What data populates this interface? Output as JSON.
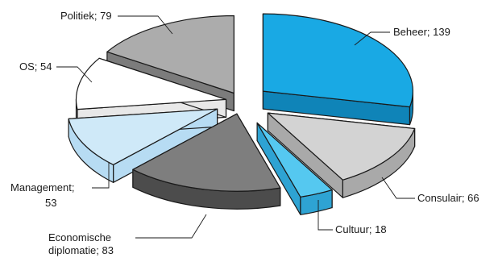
{
  "chart_data": {
    "type": "pie",
    "title": "",
    "three_d": true,
    "exploded": true,
    "slices": [
      {
        "name": "Beheer",
        "value": 139,
        "label": "Beheer; 139",
        "color": "#19a9e4",
        "side": "#0f84b8"
      },
      {
        "name": "Consulair",
        "value": 66,
        "label": "Consulair; 66",
        "color": "#d3d3d3",
        "side": "#a9a9a9"
      },
      {
        "name": "Cultuur",
        "value": 18,
        "label": "Cultuur; 18",
        "color": "#55c8f0",
        "side": "#2ea3d3"
      },
      {
        "name": "Economische diplomatie",
        "value": 83,
        "label_lines": [
          "Economische",
          "diplomatie; 83"
        ],
        "color": "#7e7e7e",
        "side": "#4c4c4c"
      },
      {
        "name": "Management",
        "value": 53,
        "label_lines": [
          "Management;",
          "53"
        ],
        "color": "#cfe9f8",
        "side": "#b7dcf3"
      },
      {
        "name": "OS",
        "value": 54,
        "label": "OS; 54",
        "color": "#ffffff",
        "side": "#e8e8e8"
      },
      {
        "name": "Politiek",
        "value": 79,
        "label": "Politiek; 79",
        "color": "#acacac",
        "side": "#7c7c7c"
      }
    ]
  }
}
